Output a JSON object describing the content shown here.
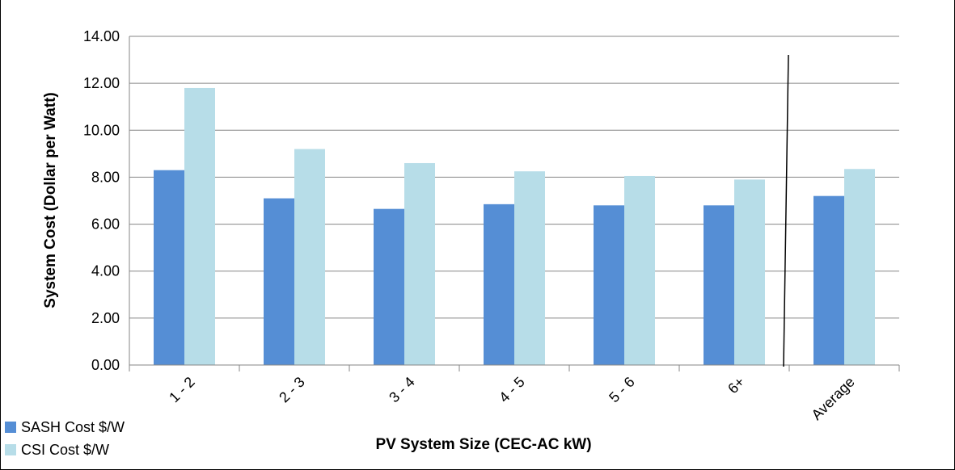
{
  "chart_data": {
    "type": "bar",
    "title": "",
    "xlabel": "PV System Size (CEC-AC kW)",
    "ylabel": "System Cost (Dollar per Watt)",
    "ylim": [
      0,
      14
    ],
    "yticks": [
      "0.00",
      "2.00",
      "4.00",
      "6.00",
      "8.00",
      "10.00",
      "12.00",
      "14.00"
    ],
    "categories": [
      "1 - 2",
      "2 - 3",
      "3 - 4",
      "4 - 5",
      "5 - 6",
      "6+",
      "Average"
    ],
    "series": [
      {
        "name": "SASH Cost $/W",
        "color": "#558ed5",
        "values": [
          8.3,
          7.1,
          6.65,
          6.85,
          6.8,
          6.8,
          7.2
        ]
      },
      {
        "name": "CSI Cost $/W",
        "color": "#b7dde8",
        "values": [
          11.8,
          9.2,
          8.6,
          8.25,
          8.05,
          7.9,
          8.35
        ]
      }
    ],
    "grid": true,
    "legend": "bottom-left",
    "divider_line": true
  }
}
